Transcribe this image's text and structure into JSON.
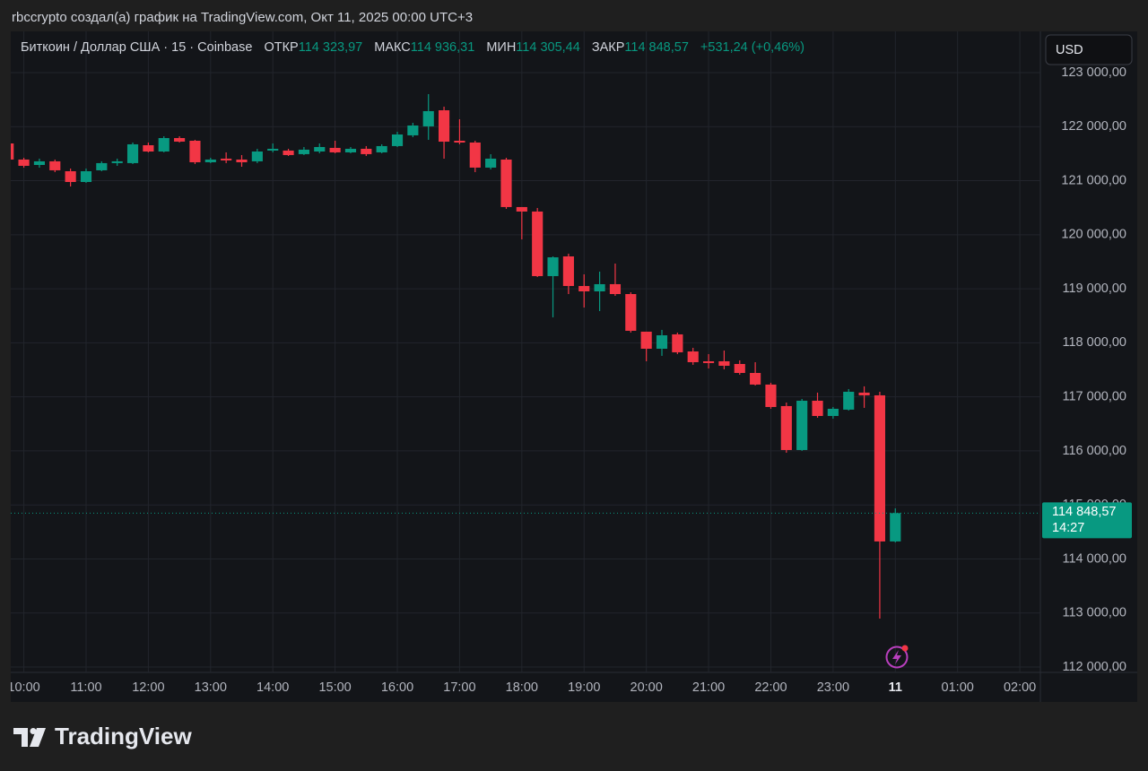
{
  "header": {
    "attribution": "rbccrypto создал(а) график на TradingView.com, Окт 11, 2025 00:00 UTC+3",
    "brand": "TradingView"
  },
  "chart_data": {
    "type": "candlestick",
    "title": "Биткоин / Доллар США · 15 · Coinbase",
    "legend": {
      "labels": [
        "ОТКР",
        "МАКС",
        "МИН",
        "ЗАКР"
      ],
      "value_labels": [
        "114 323,97",
        "114 936,31",
        "114 305,44",
        "114 848,57"
      ],
      "change": "+531,24 (+0,46%)"
    },
    "currency": "USD",
    "up_color": "#089981",
    "down_color": "#f23645",
    "grid": true,
    "x": [
      9.75,
      10,
      10.25,
      10.5,
      10.75,
      11,
      11.25,
      11.5,
      11.75,
      12,
      12.25,
      12.5,
      12.75,
      13,
      13.25,
      13.5,
      13.75,
      14,
      14.25,
      14.5,
      14.75,
      15,
      15.25,
      15.5,
      15.75,
      16,
      16.25,
      16.5,
      16.75,
      17,
      17.25,
      17.5,
      17.75,
      18,
      18.25,
      18.5,
      18.75,
      19,
      19.25,
      19.5,
      19.75,
      20,
      20.25,
      20.5,
      20.75,
      21,
      21.25,
      21.5,
      21.75,
      22,
      22.25,
      22.5,
      22.75,
      23,
      23.25,
      23.5,
      23.75,
      24
    ],
    "open": [
      121689,
      121391,
      121291,
      121358,
      121175,
      120976,
      121192,
      121325,
      121325,
      121656,
      121540,
      121789,
      121739,
      121341,
      121408,
      121391,
      121358,
      121557,
      121557,
      121491,
      121540,
      121607,
      121524,
      121590,
      121524,
      121640,
      121839,
      122005,
      122303,
      121739,
      121706,
      121242,
      121391,
      120512,
      120429,
      119234,
      119599,
      119051,
      118952,
      119085,
      118902,
      118206,
      117890,
      118156,
      117840,
      117658,
      117658,
      117608,
      117442,
      117227,
      116829,
      116016,
      116928,
      116646,
      116763,
      117078,
      117028,
      114323.97
    ],
    "high": [
      121723,
      121424,
      121408,
      121391,
      121225,
      121225,
      121358,
      121408,
      121706,
      121706,
      121822,
      121822,
      121756,
      121424,
      121524,
      121474,
      121590,
      121689,
      121590,
      121623,
      121689,
      121739,
      121623,
      121640,
      121673,
      121905,
      122071,
      122602,
      122370,
      122137,
      121739,
      121490,
      121424,
      120512,
      120495,
      119599,
      119649,
      119267,
      119317,
      119466,
      118935,
      118206,
      118239,
      118189,
      117907,
      117791,
      117857,
      117675,
      117641,
      117260,
      116895,
      116961,
      117078,
      116812,
      117144,
      117194,
      117094,
      114936.31
    ],
    "low": [
      121358,
      121241,
      121241,
      121158,
      120893,
      120959,
      121175,
      121275,
      121308,
      121524,
      121524,
      121706,
      121308,
      121325,
      121325,
      121258,
      121325,
      121524,
      121457,
      121474,
      121507,
      121507,
      121507,
      121457,
      121507,
      121623,
      121806,
      121756,
      121407,
      121673,
      121158,
      121208,
      120478,
      119914,
      119217,
      118471,
      118902,
      118653,
      118587,
      118869,
      118189,
      117658,
      117758,
      117791,
      117592,
      117525,
      117509,
      117409,
      117210,
      116779,
      115966,
      116000,
      116613,
      116596,
      116746,
      116796,
      112897,
      114305.44
    ],
    "close": [
      121391,
      121275,
      121358,
      121192,
      120976,
      121175,
      121325,
      121358,
      121673,
      121540,
      121789,
      121723,
      121341,
      121391,
      121375,
      121341,
      121540,
      121590,
      121474,
      121574,
      121623,
      121524,
      121590,
      121491,
      121640,
      121855,
      122021,
      122287,
      121722,
      121706,
      121242,
      121408,
      120512,
      120429,
      119234,
      119582,
      119051,
      118952,
      119085,
      118902,
      118222,
      117890,
      118139,
      117824,
      117641,
      117625,
      117575,
      117442,
      117227,
      116812,
      116016,
      116928,
      116646,
      116779,
      117094,
      117028,
      114323.97,
      114848.57
    ],
    "xlim": [
      9.79,
      26.33
    ],
    "xticks": [
      {
        "value": 10,
        "label": "10:00"
      },
      {
        "value": 11,
        "label": "11:00"
      },
      {
        "value": 12,
        "label": "12:00"
      },
      {
        "value": 13,
        "label": "13:00"
      },
      {
        "value": 14,
        "label": "14:00"
      },
      {
        "value": 15,
        "label": "15:00"
      },
      {
        "value": 16,
        "label": "16:00"
      },
      {
        "value": 17,
        "label": "17:00"
      },
      {
        "value": 18,
        "label": "18:00"
      },
      {
        "value": 19,
        "label": "19:00"
      },
      {
        "value": 20,
        "label": "20:00"
      },
      {
        "value": 21,
        "label": "21:00"
      },
      {
        "value": 22,
        "label": "22:00"
      },
      {
        "value": 23,
        "label": "23:00"
      },
      {
        "value": 24,
        "label": "11"
      },
      {
        "value": 25,
        "label": "01:00"
      },
      {
        "value": 26,
        "label": "02:00"
      }
    ],
    "ylim": [
      111901,
      123763
    ],
    "yticks": [
      {
        "value": 112000,
        "label": "112 000,00"
      },
      {
        "value": 113000,
        "label": "113 000,00"
      },
      {
        "value": 114000,
        "label": "114 000,00"
      },
      {
        "value": 115000,
        "label": "115 000,00"
      },
      {
        "value": 116000,
        "label": "116 000,00"
      },
      {
        "value": 117000,
        "label": "117 000,00"
      },
      {
        "value": 118000,
        "label": "118 000,00"
      },
      {
        "value": 119000,
        "label": "119 000,00"
      },
      {
        "value": 120000,
        "label": "120 000,00"
      },
      {
        "value": 121000,
        "label": "121 000,00"
      },
      {
        "value": 122000,
        "label": "122 000,00"
      },
      {
        "value": 123000,
        "label": "123 000,00"
      }
    ],
    "last_price": {
      "value": 114848.57,
      "label": "114 848,57",
      "countdown": "14:27"
    }
  }
}
